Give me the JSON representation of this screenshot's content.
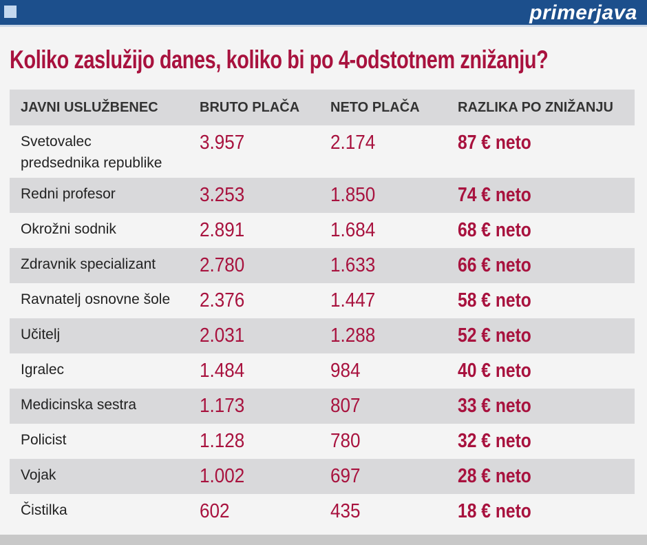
{
  "header": {
    "brand": "primerjava"
  },
  "title": "Koliko zaslužijo danes, koliko bi po 4-odstotnem znižanju?",
  "table": {
    "columns": [
      "JAVNI USLUŽBENEC",
      "BRUTO PLAČA",
      "NETO PLAČA",
      "RAZLIKA PO ZNIŽANJU"
    ],
    "rows": [
      [
        "Svetovalec\npredsednika republike",
        "3.957",
        "2.174",
        "87 € neto"
      ],
      [
        "Redni profesor",
        "3.253",
        "1.850",
        "74 € neto"
      ],
      [
        "Okrožni sodnik",
        "2.891",
        "1.684",
        "68 € neto"
      ],
      [
        "Zdravnik specializant",
        "2.780",
        "1.633",
        "66 € neto"
      ],
      [
        "Ravnatelj osnovne šole",
        "2.376",
        "1.447",
        "58 € neto"
      ],
      [
        "Učitelj",
        "2.031",
        "1.288",
        "52 € neto"
      ],
      [
        "Igralec",
        "1.484",
        "984",
        "40 € neto"
      ],
      [
        "Medicinska sestra",
        "1.173",
        "807",
        "33 € neto"
      ],
      [
        "Policist",
        "1.128",
        "780",
        "32 € neto"
      ],
      [
        "Vojak",
        "1.002",
        "697",
        "28 € neto"
      ],
      [
        "Čistilka",
        "602",
        "435",
        "18 € neto"
      ]
    ]
  }
}
